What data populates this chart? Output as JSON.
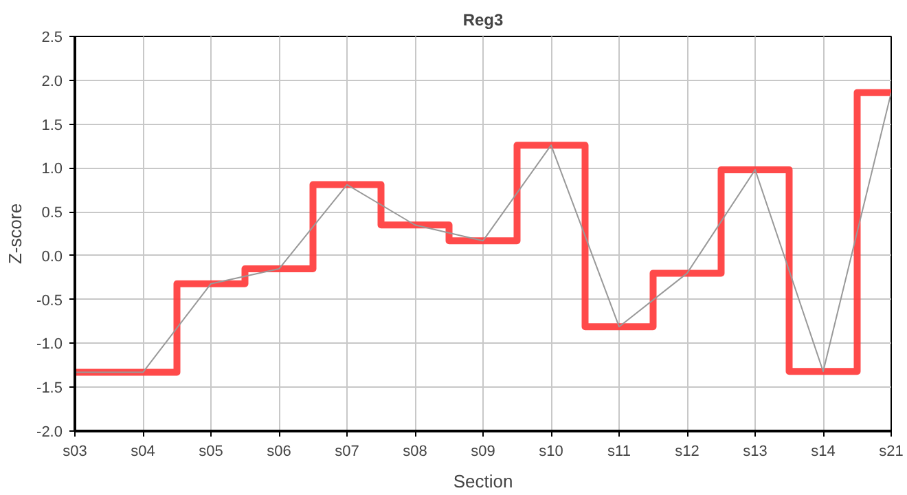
{
  "chart_data": {
    "type": "step",
    "title": "Reg3",
    "xlabel": "Section",
    "ylabel": "Z-score",
    "categories": [
      "s03",
      "s04",
      "s05",
      "s06",
      "s07",
      "s08",
      "s09",
      "s10",
      "s11",
      "s12",
      "s13",
      "s14",
      "s21"
    ],
    "series": [
      {
        "color": "#ff4040",
        "values": [
          -1.33,
          -1.33,
          -0.32,
          -0.15,
          0.81,
          0.35,
          0.17,
          1.26,
          -0.81,
          -0.2,
          0.98,
          -1.32,
          1.86
        ]
      },
      {
        "type": "line",
        "color": "#999999",
        "values": [
          -1.33,
          -1.33,
          -0.32,
          -0.15,
          0.81,
          0.35,
          0.17,
          1.26,
          -0.81,
          -0.2,
          0.98,
          -1.32,
          1.86
        ]
      }
    ],
    "ylim": [
      -2.0,
      2.5
    ],
    "yticks": [
      {
        "value": -2.0,
        "label": "-2.0"
      },
      {
        "value": -1.5,
        "label": "-1.5"
      },
      {
        "value": -1.0,
        "label": "-1.0"
      },
      {
        "value": -0.5,
        "label": "-0.5"
      },
      {
        "value": 0.0,
        "label": "0.0"
      },
      {
        "value": 0.5,
        "label": "0.5"
      },
      {
        "value": 1.0,
        "label": "1.0"
      },
      {
        "value": 1.5,
        "label": "1.5"
      },
      {
        "value": 2.0,
        "label": "2.0"
      },
      {
        "value": 2.5,
        "label": "2.5"
      }
    ],
    "grid": true
  }
}
